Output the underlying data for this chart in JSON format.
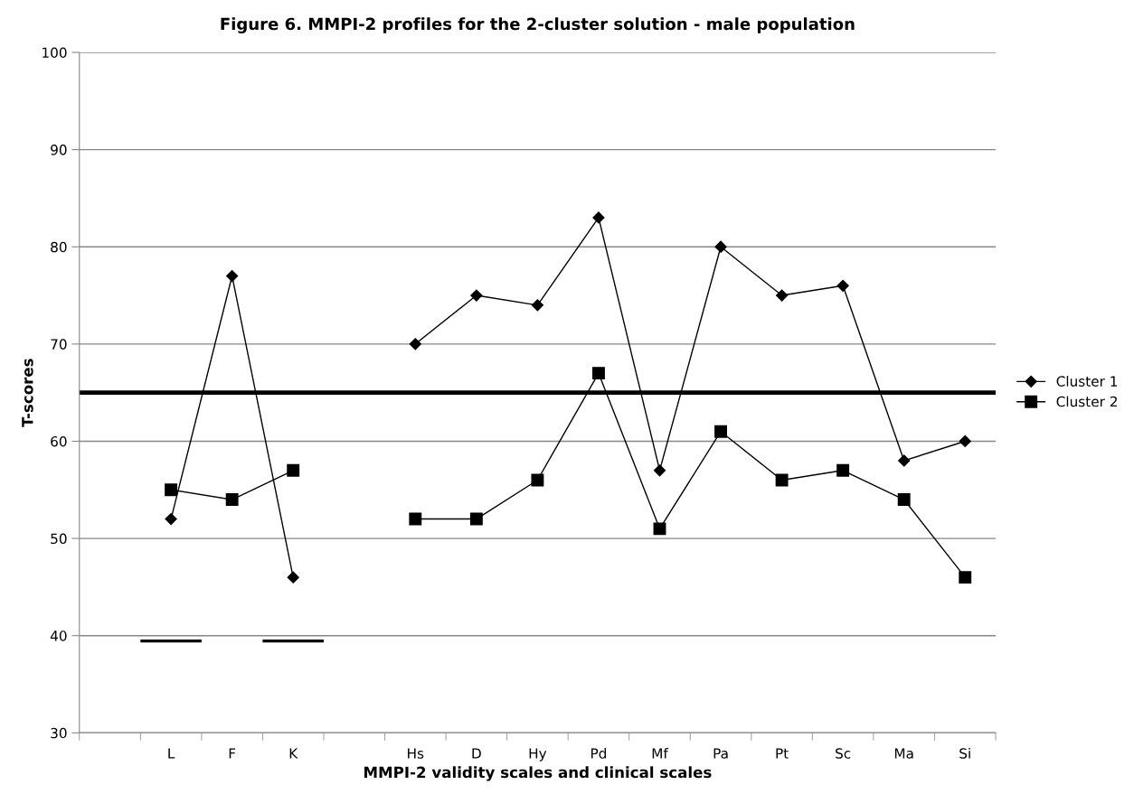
{
  "chart_data": {
    "type": "line",
    "title": "Figure 6. MMPI-2 profiles for the 2-cluster solution - male population",
    "xlabel": "MMPI-2 validity scales and clinical scales",
    "ylabel": "T-scores",
    "categories": [
      null,
      "L",
      "F",
      "K",
      null,
      "Hs",
      "D",
      "Hy",
      "Pd",
      "Mf",
      "Pa",
      "Pt",
      "Sc",
      "Ma",
      "Si"
    ],
    "series": [
      {
        "name": "Cluster 1",
        "color": "#000000",
        "marker": "diamond",
        "values": [
          null,
          52,
          77,
          46,
          null,
          70,
          75,
          74,
          83,
          57,
          80,
          75,
          76,
          58,
          60
        ]
      },
      {
        "name": "Cluster 2",
        "color": "#000000",
        "marker": "square",
        "values": [
          null,
          55,
          54,
          57,
          null,
          52,
          52,
          56,
          67,
          51,
          61,
          56,
          57,
          54,
          46
        ]
      },
      {
        "type": "bar",
        "color": "#000000",
        "base": [
          null,
          39.3,
          null,
          39.3,
          null,
          null,
          null,
          null,
          null,
          null,
          null,
          null,
          null,
          null,
          null
        ],
        "values": [
          null,
          0.3,
          null,
          0.3,
          null,
          null,
          null,
          null,
          null,
          null,
          null,
          null,
          null,
          null,
          null
        ]
      }
    ],
    "ylim": [
      30,
      100
    ],
    "yticks": [
      30,
      40,
      50,
      60,
      70,
      80,
      90,
      100
    ],
    "grid": "y",
    "legend": "right",
    "ref_lines": [
      {
        "axis": "y",
        "value": 65,
        "color": "#000000"
      }
    ]
  }
}
